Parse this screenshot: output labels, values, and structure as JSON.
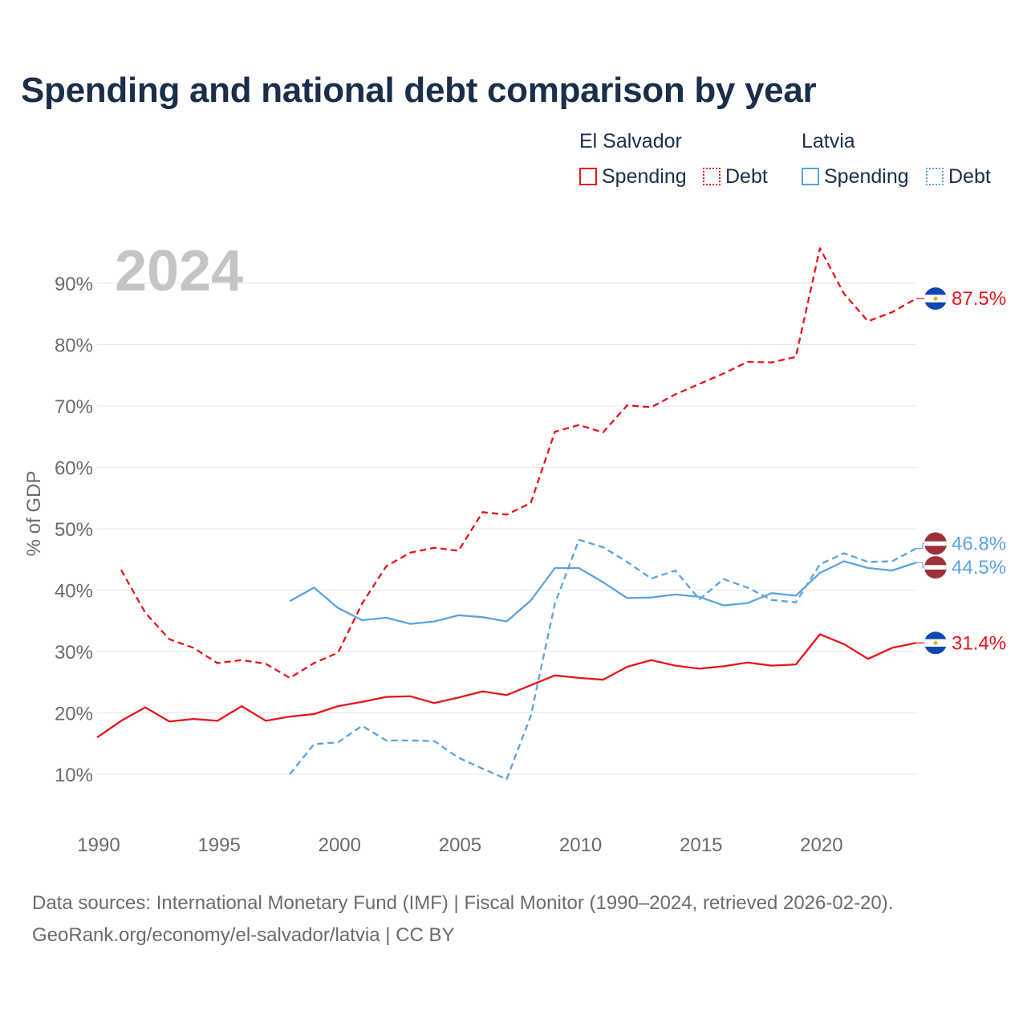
{
  "title": "Spending and national debt comparison by year",
  "legend": {
    "groups": [
      {
        "country": "El Salvador",
        "color": "#e8141b",
        "items": [
          {
            "label": "Spending",
            "style": "solid"
          },
          {
            "label": "Debt",
            "style": "dotted"
          }
        ]
      },
      {
        "country": "Latvia",
        "color": "#5ba3e0",
        "items": [
          {
            "label": "Spending",
            "style": "solid"
          },
          {
            "label": "Debt",
            "style": "dotted"
          }
        ]
      }
    ]
  },
  "year_watermark": "2024",
  "source": {
    "line1": "Data sources: International Monetary Fund (IMF) | Fiscal Monitor (1990–2024, retrieved 2026-02-20).",
    "line2": "GeoRank.org/economy/el-salvador/latvia | CC BY"
  },
  "chart_data": {
    "type": "line",
    "title": "Spending and national debt comparison by year",
    "xlabel": "",
    "ylabel": "% of GDP",
    "xlim": [
      1990,
      2024
    ],
    "ylim": [
      3,
      100
    ],
    "x_ticks": [
      1990,
      1995,
      2000,
      2005,
      2010,
      2015,
      2020
    ],
    "y_ticks": [
      10,
      20,
      30,
      40,
      50,
      60,
      70,
      80,
      90
    ],
    "y_tick_labels": [
      "10%",
      "20%",
      "30%",
      "40%",
      "50%",
      "60%",
      "70%",
      "80%",
      "90%"
    ],
    "grid": true,
    "legend_position": "top-right",
    "series": [
      {
        "name": "El Salvador Debt",
        "country": "El Salvador",
        "metric": "Debt",
        "dash": "dashed",
        "color": "#e8141b",
        "flag": "el-salvador",
        "end_label": "87.5%",
        "x": [
          1991,
          1992,
          1993,
          1994,
          1995,
          1996,
          1997,
          1998,
          1999,
          2000,
          2001,
          2002,
          2003,
          2004,
          2005,
          2006,
          2007,
          2008,
          2009,
          2010,
          2011,
          2012,
          2013,
          2014,
          2015,
          2016,
          2017,
          2018,
          2019,
          2020,
          2021,
          2022,
          2023,
          2024
        ],
        "values": [
          43.3,
          36.3,
          32.0,
          30.6,
          28.1,
          28.6,
          28.0,
          25.7,
          28.1,
          29.8,
          37.8,
          43.9,
          46.1,
          46.9,
          46.4,
          52.7,
          52.3,
          54.2,
          65.8,
          66.9,
          65.7,
          70.1,
          69.8,
          71.9,
          73.6,
          75.3,
          77.2,
          77.1,
          78.0,
          95.7,
          88.3,
          83.8,
          85.3,
          87.5
        ]
      },
      {
        "name": "El Salvador Spending",
        "country": "El Salvador",
        "metric": "Spending",
        "dash": "solid",
        "color": "#e8141b",
        "flag": "el-salvador",
        "end_label": "31.4%",
        "x": [
          1990,
          1991,
          1992,
          1993,
          1994,
          1995,
          1996,
          1997,
          1998,
          1999,
          2000,
          2001,
          2002,
          2003,
          2004,
          2005,
          2006,
          2007,
          2008,
          2009,
          2010,
          2011,
          2012,
          2013,
          2014,
          2015,
          2016,
          2017,
          2018,
          2019,
          2020,
          2021,
          2022,
          2023,
          2024
        ],
        "values": [
          16.0,
          18.7,
          20.9,
          18.6,
          19.0,
          18.7,
          21.1,
          18.7,
          19.4,
          19.8,
          21.1,
          21.8,
          22.6,
          22.7,
          21.6,
          22.5,
          23.5,
          22.9,
          24.5,
          26.1,
          25.7,
          25.4,
          27.5,
          28.6,
          27.7,
          27.2,
          27.6,
          28.2,
          27.7,
          27.9,
          32.8,
          31.2,
          28.8,
          30.6,
          31.4
        ]
      },
      {
        "name": "Latvia Debt",
        "country": "Latvia",
        "metric": "Debt",
        "dash": "dashed",
        "color": "#5ba3e0",
        "flag": "latvia",
        "end_label": "46.8%",
        "x": [
          1998,
          1999,
          2000,
          2001,
          2002,
          2003,
          2004,
          2005,
          2006,
          2007,
          2008,
          2009,
          2010,
          2011,
          2012,
          2013,
          2014,
          2015,
          2016,
          2017,
          2018,
          2019,
          2020,
          2021,
          2022,
          2023,
          2024
        ],
        "values": [
          10.0,
          14.9,
          15.2,
          17.9,
          15.5,
          15.5,
          15.4,
          12.7,
          10.9,
          9.2,
          19.5,
          37.8,
          48.2,
          47.0,
          44.6,
          41.9,
          43.2,
          38.5,
          41.8,
          40.4,
          38.4,
          38.0,
          44.2,
          46.0,
          44.6,
          44.7,
          46.8
        ]
      },
      {
        "name": "Latvia Spending",
        "country": "Latvia",
        "metric": "Spending",
        "dash": "solid",
        "color": "#5ba3e0",
        "flag": "latvia",
        "end_label": "44.5%",
        "x": [
          1998,
          1999,
          2000,
          2001,
          2002,
          2003,
          2004,
          2005,
          2006,
          2007,
          2008,
          2009,
          2010,
          2011,
          2012,
          2013,
          2014,
          2015,
          2016,
          2017,
          2018,
          2019,
          2020,
          2021,
          2022,
          2023,
          2024
        ],
        "values": [
          38.2,
          40.4,
          37.1,
          35.1,
          35.5,
          34.5,
          34.9,
          35.9,
          35.6,
          34.9,
          38.3,
          43.6,
          43.6,
          41.3,
          38.7,
          38.8,
          39.3,
          38.9,
          37.5,
          37.9,
          39.5,
          39.1,
          42.8,
          44.7,
          43.6,
          43.2,
          44.5
        ]
      }
    ]
  }
}
